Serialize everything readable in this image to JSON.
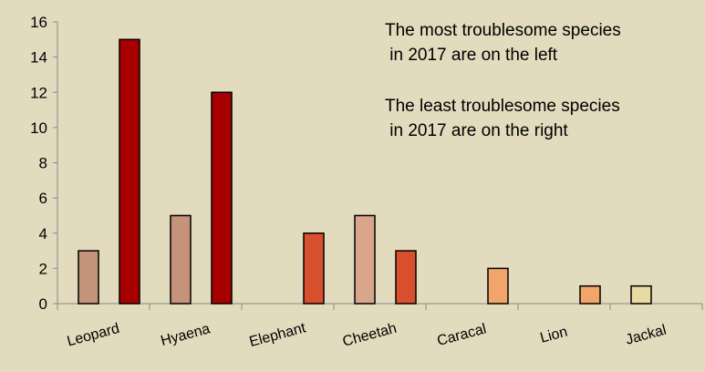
{
  "chart_data": {
    "type": "bar",
    "title": "",
    "xlabel": "",
    "ylabel": "",
    "ylim": [
      0,
      16
    ],
    "yticks": [
      0,
      2,
      4,
      6,
      8,
      10,
      12,
      14,
      16
    ],
    "grid": false,
    "legend": "none",
    "groups": [
      "Leopard",
      "Hyaena",
      "Elephant",
      "Cheetah",
      "Caracal",
      "Lion",
      "Jackal"
    ],
    "bars": [
      {
        "group": "Leopard",
        "value": 3,
        "color": "#c4937a"
      },
      {
        "group": "Leopard",
        "value": 15,
        "color": "#a80000"
      },
      {
        "group": "Hyaena",
        "value": 5,
        "color": "#c4937a"
      },
      {
        "group": "Hyaena",
        "value": 12,
        "color": "#a80000"
      },
      {
        "group": "Elephant",
        "value": 0,
        "color": "#c4937a"
      },
      {
        "group": "Elephant",
        "value": 4,
        "color": "#d9502e"
      },
      {
        "group": "Cheetah",
        "value": 5,
        "color": "#d9a68c"
      },
      {
        "group": "Cheetah",
        "value": 3,
        "color": "#d9502e"
      },
      {
        "group": "Caracal",
        "value": 0,
        "color": "#c4937a"
      },
      {
        "group": "Caracal",
        "value": 2,
        "color": "#f0a56a"
      },
      {
        "group": "Lion",
        "value": 0,
        "color": "#c4937a"
      },
      {
        "group": "Lion",
        "value": 1,
        "color": "#f0a56a"
      },
      {
        "group": "Jackal",
        "value": 1,
        "color": "#e8daa2"
      }
    ],
    "annotations": [
      "The most troublesome species\n in 2017 are on the left",
      "The least troublesome species\n in 2017 are on the right"
    ],
    "colors": {
      "background": "#e2dbbd",
      "bar_outline": "#000000",
      "axis": "#8a8a8a"
    }
  }
}
